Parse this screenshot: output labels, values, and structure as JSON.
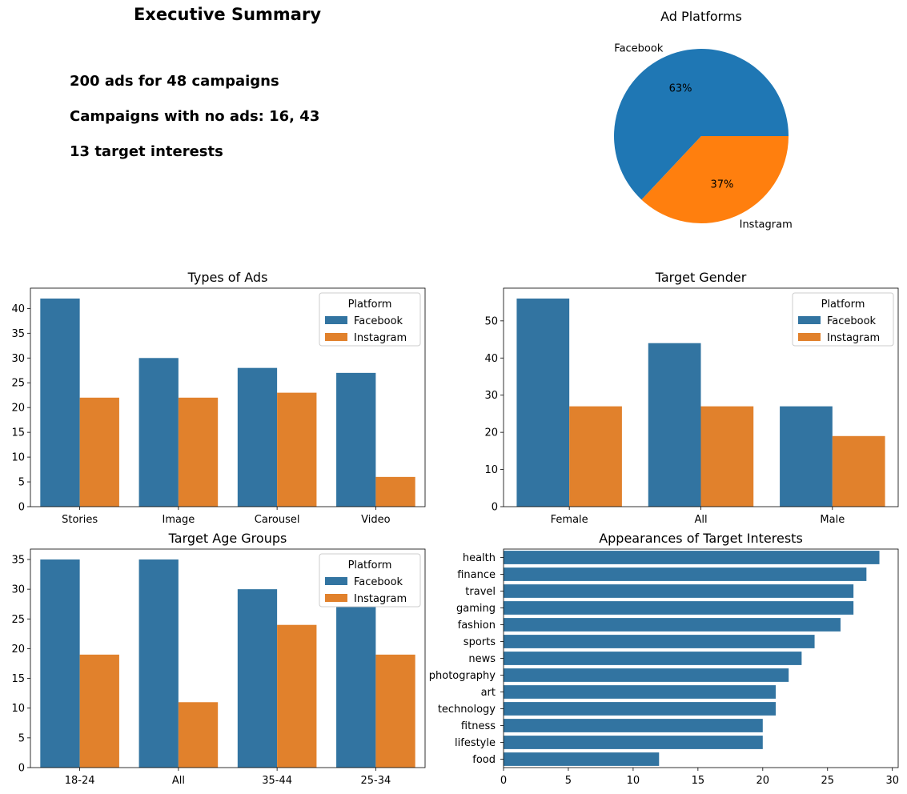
{
  "summary": {
    "title": "Executive Summary",
    "lines": [
      "200 ads for 48 campaigns",
      "Campaigns with no ads: 16, 43",
      "13 target interests"
    ]
  },
  "colors": {
    "facebook_bar": "#3274a1",
    "instagram_bar": "#e1812c",
    "pie_facebook": "#1f77b4",
    "pie_instagram": "#ff7f0e"
  },
  "chart_data": [
    {
      "id": "pie",
      "type": "pie",
      "title": "Ad Platforms",
      "labels": [
        "Facebook",
        "Instagram"
      ],
      "values": [
        63,
        37
      ],
      "autopct": [
        "63%",
        "37%"
      ]
    },
    {
      "id": "types",
      "type": "bar",
      "title": "Types of Ads",
      "categories": [
        "Stories",
        "Image",
        "Carousel",
        "Video"
      ],
      "series": [
        {
          "name": "Facebook",
          "values": [
            42,
            30,
            28,
            27
          ]
        },
        {
          "name": "Instagram",
          "values": [
            22,
            22,
            23,
            6
          ]
        }
      ],
      "ylim": [
        0,
        44.1
      ],
      "yticks": [
        0,
        5,
        10,
        15,
        20,
        25,
        30,
        35,
        40
      ],
      "legend": {
        "title": "Platform",
        "placement": "top-right"
      }
    },
    {
      "id": "gender",
      "type": "bar",
      "title": "Target Gender",
      "categories": [
        "Female",
        "All",
        "Male"
      ],
      "series": [
        {
          "name": "Facebook",
          "values": [
            56,
            44,
            27
          ]
        },
        {
          "name": "Instagram",
          "values": [
            27,
            27,
            19
          ]
        }
      ],
      "ylim": [
        0,
        58.8
      ],
      "yticks": [
        0,
        10,
        20,
        30,
        40,
        50
      ],
      "legend": {
        "title": "Platform",
        "placement": "top-right"
      }
    },
    {
      "id": "age",
      "type": "bar",
      "title": "Target Age Groups",
      "categories": [
        "18-24",
        "All",
        "35-44",
        "25-34"
      ],
      "series": [
        {
          "name": "Facebook",
          "values": [
            35,
            35,
            30,
            27
          ]
        },
        {
          "name": "Instagram",
          "values": [
            19,
            11,
            24,
            19
          ]
        }
      ],
      "ylim": [
        0,
        36.75
      ],
      "yticks": [
        0,
        5,
        10,
        15,
        20,
        25,
        30,
        35
      ],
      "legend": {
        "title": "Platform",
        "placement": "top-right"
      }
    },
    {
      "id": "interests",
      "type": "bar",
      "orientation": "horizontal",
      "title": "Appearances of Target Interests",
      "categories": [
        "health",
        "finance",
        "travel",
        "gaming",
        "fashion",
        "sports",
        "news",
        "photography",
        "art",
        "technology",
        "fitness",
        "lifestyle",
        "food"
      ],
      "values": [
        29,
        28,
        27,
        27,
        26,
        24,
        23,
        22,
        21,
        21,
        20,
        20,
        12
      ],
      "xlim": [
        0,
        30.45
      ],
      "xticks": [
        0,
        5,
        10,
        15,
        20,
        25,
        30
      ]
    }
  ]
}
